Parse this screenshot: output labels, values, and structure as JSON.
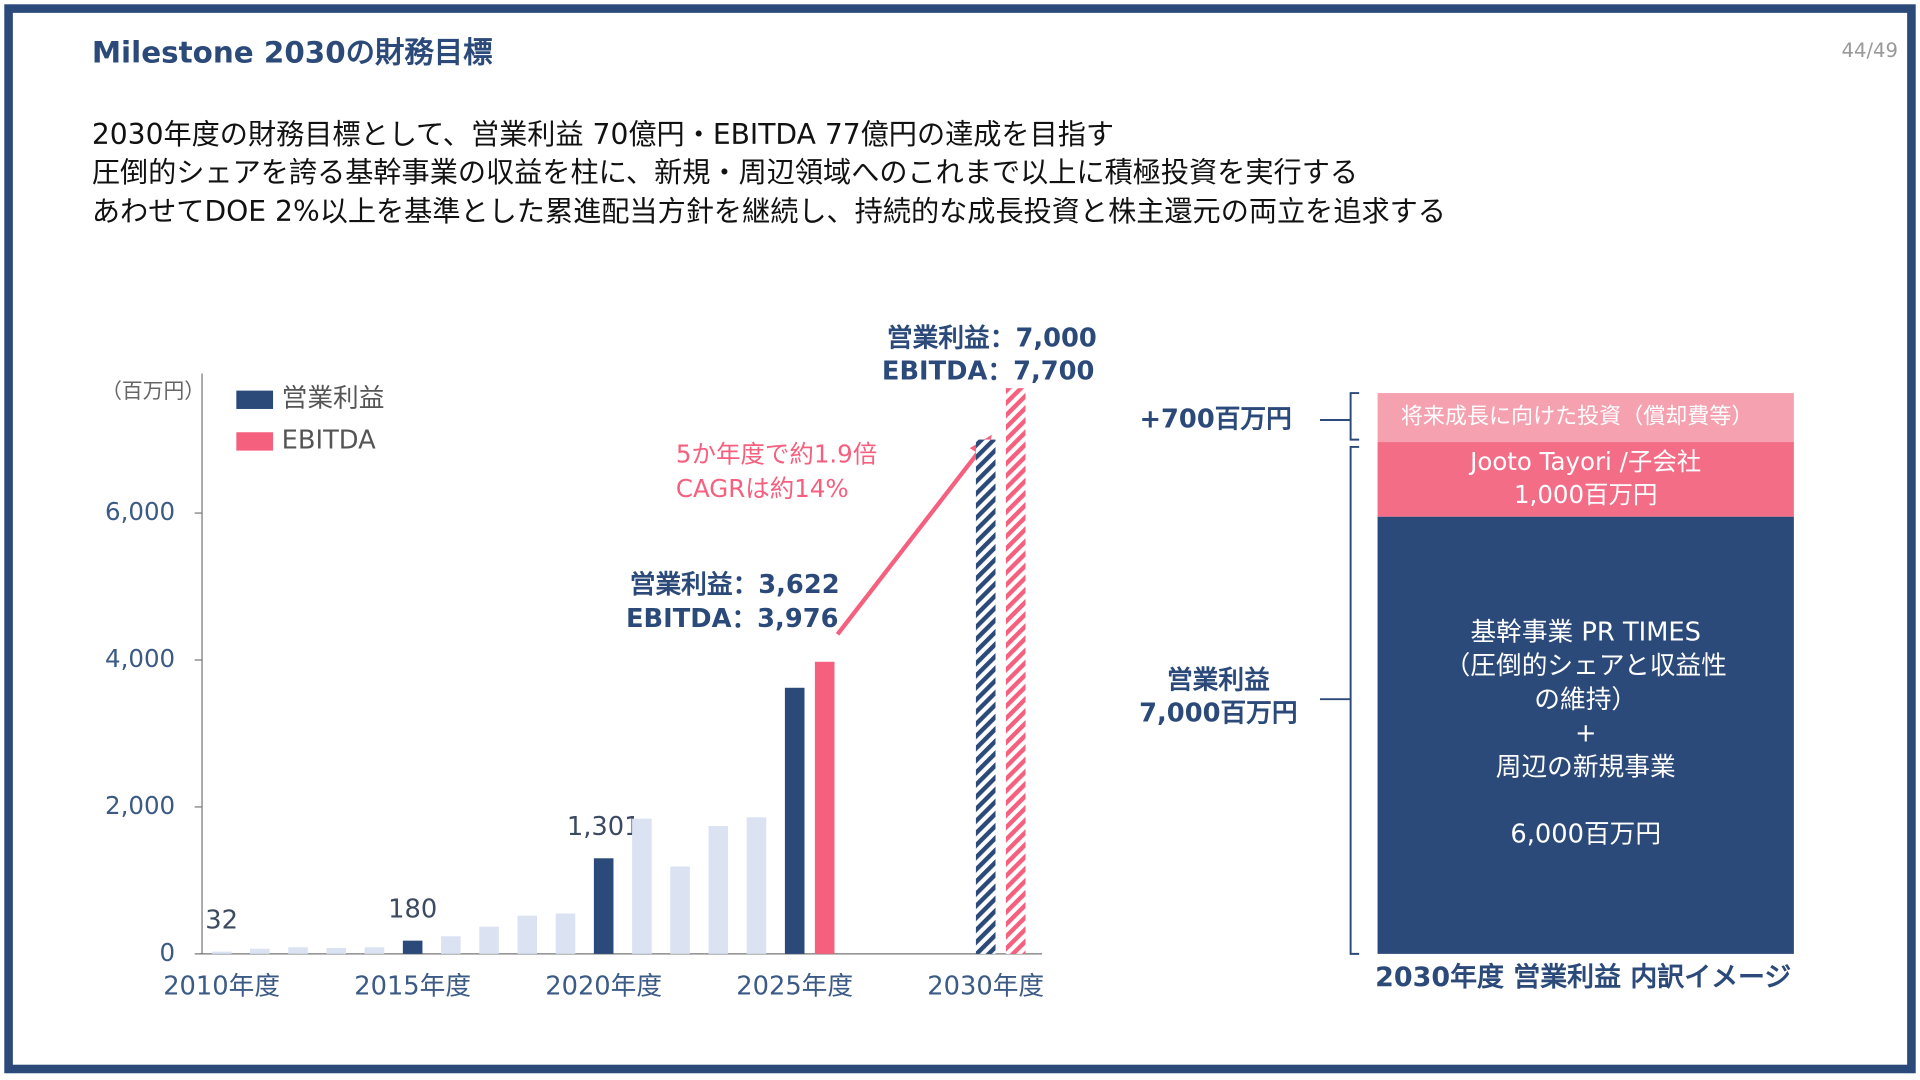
{
  "slide": {
    "title": "Milestone 2030の財務目標",
    "page": "44/49",
    "lines": [
      "2030年度の財務目標として、営業利益 70億円・EBITDA 77億円の達成を目指す",
      "圧倒的シェアを誇る基幹事業の収益を柱に、新規・周辺領域へのこれまで以上に積極投資を実行する",
      "あわせてDOE 2%以上を基準とした累進配当方針を継続し、持続的な成長投資と株主還元の両立を追求する"
    ]
  },
  "chart_data": {
    "type": "bar",
    "y_label": "（百万円）",
    "categories": [
      "2010年度",
      null,
      null,
      null,
      null,
      "2015年度",
      null,
      null,
      null,
      null,
      "2020年度",
      null,
      null,
      null,
      null,
      "2025年度",
      null,
      null,
      null,
      null,
      "2030年度"
    ],
    "series": [
      {
        "name": "営業利益",
        "color": "#2b4a7a",
        "muted_color": "#dbe3f3",
        "values": [
          32,
          70,
          90,
          80,
          90,
          180,
          240,
          370,
          520,
          550,
          1301,
          1840,
          1190,
          1740,
          1860,
          3622,
          null,
          null,
          null,
          null,
          7000
        ],
        "value_labels": [
          "32",
          null,
          null,
          null,
          null,
          "180",
          null,
          null,
          null,
          null,
          "1,301",
          null,
          null,
          null,
          null,
          null,
          null,
          null,
          null,
          null,
          null
        ],
        "highlight": [
          false,
          false,
          false,
          false,
          false,
          true,
          false,
          false,
          false,
          false,
          true,
          false,
          false,
          false,
          false,
          true,
          false,
          false,
          false,
          false,
          true
        ]
      },
      {
        "name": "EBITDA",
        "color": "#f5607e",
        "values": [
          null,
          null,
          null,
          null,
          null,
          null,
          null,
          null,
          null,
          null,
          null,
          null,
          null,
          null,
          null,
          3976,
          null,
          null,
          null,
          null,
          7700
        ]
      }
    ],
    "hatched": [
      false,
      false,
      false,
      false,
      false,
      false,
      false,
      false,
      false,
      false,
      false,
      false,
      false,
      false,
      false,
      false,
      false,
      false,
      false,
      false,
      true
    ],
    "ylim": [
      0,
      7900
    ],
    "yticks": [
      0,
      {
        "value": 2000,
        "label": "2,000"
      },
      {
        "value": 4000,
        "label": "4,000"
      },
      {
        "value": 6000,
        "label": "6,000"
      }
    ],
    "annotations": [
      "営業利益：3,622",
      "EBITDA：3,976",
      "営業利益：7,000",
      "EBITDA：7,700",
      "5か年度で約1.9倍",
      "CAGRは約14%"
    ]
  },
  "breakdown": {
    "segments": [
      [
        "将来成長に向けた投資（償却費等）"
      ],
      [
        "Jooto Tayori /子会社",
        "1,000百万円"
      ],
      [
        "基幹事業 PR TIMES",
        "（圧倒的シェアと収益性",
        "の維持）",
        "+",
        "周辺の新規事業",
        "",
        "6,000百万円"
      ]
    ],
    "brackets": [
      [
        "+700百万円"
      ],
      [
        "営業利益",
        "7,000百万円"
      ]
    ],
    "caption": "2030年度 営業利益 内訳イメージ"
  }
}
